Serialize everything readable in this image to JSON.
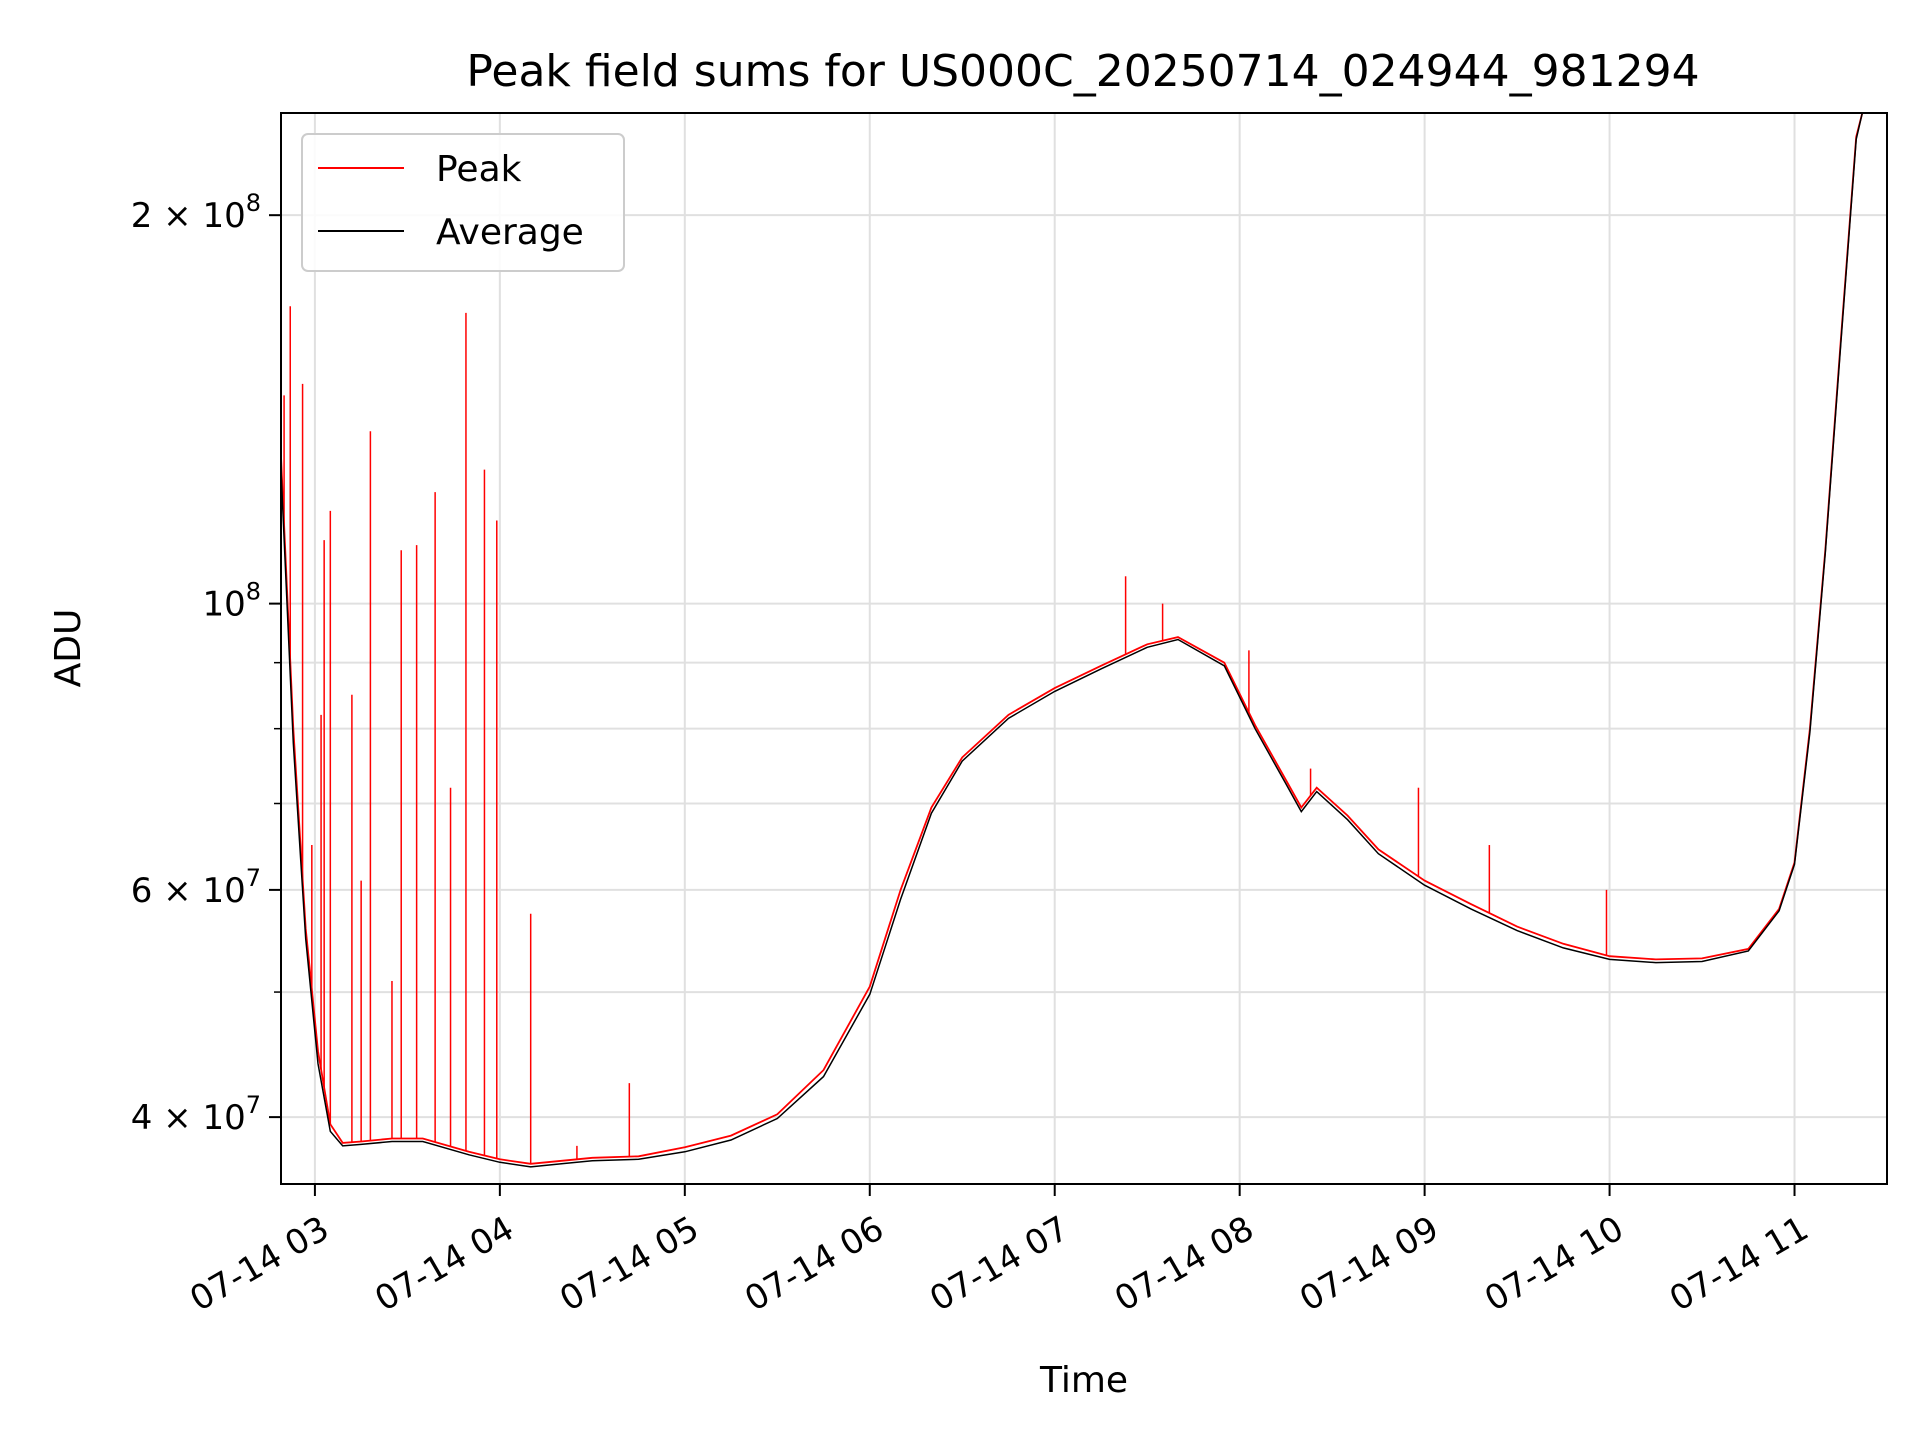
{
  "chart_data": {
    "type": "line",
    "title": "Peak field sums for US000C_20250714_024944_981294",
    "xlabel": "Time",
    "ylabel": "ADU",
    "x_scale": "time",
    "y_scale": "log",
    "xlim": [
      "2025-07-14 02:49",
      "2025-07-14 11:30"
    ],
    "ylim": [
      35500000,
      240000000
    ],
    "grid": true,
    "legend_position": "top-left",
    "x_ticks": [
      {
        "value": "2025-07-14 03:00",
        "label": "07-14 03"
      },
      {
        "value": "2025-07-14 04:00",
        "label": "07-14 04"
      },
      {
        "value": "2025-07-14 05:00",
        "label": "07-14 05"
      },
      {
        "value": "2025-07-14 06:00",
        "label": "07-14 06"
      },
      {
        "value": "2025-07-14 07:00",
        "label": "07-14 07"
      },
      {
        "value": "2025-07-14 08:00",
        "label": "07-14 08"
      },
      {
        "value": "2025-07-14 09:00",
        "label": "07-14 09"
      },
      {
        "value": "2025-07-14 10:00",
        "label": "07-14 10"
      },
      {
        "value": "2025-07-14 11:00",
        "label": "07-14 11"
      }
    ],
    "y_major_ticks": [
      {
        "value": 40000000,
        "mantissa": "4",
        "base": "10",
        "exp": "7"
      },
      {
        "value": 60000000,
        "mantissa": "6",
        "base": "10",
        "exp": "7"
      },
      {
        "value": 100000000,
        "mantissa": "",
        "base": "10",
        "exp": "8"
      },
      {
        "value": 200000000,
        "mantissa": "2",
        "base": "10",
        "exp": "8"
      }
    ],
    "y_minor_ticks": [
      50000000,
      70000000,
      80000000,
      90000000
    ],
    "series": [
      {
        "name": "Peak",
        "color": "#ff0000",
        "baseline": [
          [
            "2025-07-14 02:49",
            130000000
          ],
          [
            "2025-07-14 02:53",
            80000000
          ],
          [
            "2025-07-14 02:57",
            56000000
          ],
          [
            "2025-07-14 03:01",
            45000000
          ],
          [
            "2025-07-14 03:05",
            39500000
          ],
          [
            "2025-07-14 03:09",
            38200000
          ],
          [
            "2025-07-14 03:15",
            38300000
          ],
          [
            "2025-07-14 03:25",
            38500000
          ],
          [
            "2025-07-14 03:35",
            38500000
          ],
          [
            "2025-07-14 03:50",
            37600000
          ],
          [
            "2025-07-14 04:00",
            37100000
          ],
          [
            "2025-07-14 04:10",
            36800000
          ],
          [
            "2025-07-14 04:20",
            37000000
          ],
          [
            "2025-07-14 04:30",
            37200000
          ],
          [
            "2025-07-14 04:45",
            37300000
          ],
          [
            "2025-07-14 05:00",
            37900000
          ],
          [
            "2025-07-14 05:15",
            38700000
          ],
          [
            "2025-07-14 05:30",
            40200000
          ],
          [
            "2025-07-14 05:45",
            43500000
          ],
          [
            "2025-07-14 06:00",
            50500000
          ],
          [
            "2025-07-14 06:10",
            60000000
          ],
          [
            "2025-07-14 06:20",
            69500000
          ],
          [
            "2025-07-14 06:30",
            76000000
          ],
          [
            "2025-07-14 06:45",
            82000000
          ],
          [
            "2025-07-14 07:00",
            86000000
          ],
          [
            "2025-07-14 07:15",
            89500000
          ],
          [
            "2025-07-14 07:30",
            93000000
          ],
          [
            "2025-07-14 07:40",
            94200000
          ],
          [
            "2025-07-14 07:55",
            90000000
          ],
          [
            "2025-07-14 08:05",
            80500000
          ],
          [
            "2025-07-14 08:15",
            73000000
          ],
          [
            "2025-07-14 08:20",
            69500000
          ],
          [
            "2025-07-14 08:25",
            72000000
          ],
          [
            "2025-07-14 08:35",
            68500000
          ],
          [
            "2025-07-14 08:45",
            64500000
          ],
          [
            "2025-07-14 09:00",
            61000000
          ],
          [
            "2025-07-14 09:15",
            58500000
          ],
          [
            "2025-07-14 09:30",
            56200000
          ],
          [
            "2025-07-14 09:45",
            54500000
          ],
          [
            "2025-07-14 10:00",
            53300000
          ],
          [
            "2025-07-14 10:15",
            53000000
          ],
          [
            "2025-07-14 10:30",
            53100000
          ],
          [
            "2025-07-14 10:45",
            54000000
          ],
          [
            "2025-07-14 10:55",
            58000000
          ],
          [
            "2025-07-14 11:00",
            63000000
          ],
          [
            "2025-07-14 11:05",
            80000000
          ],
          [
            "2025-07-14 11:10",
            110000000
          ],
          [
            "2025-07-14 11:15",
            160000000
          ],
          [
            "2025-07-14 11:20",
            230000000
          ],
          [
            "2025-07-14 11:22",
            240000000
          ]
        ],
        "spikes": [
          [
            "2025-07-14 02:50",
            145000000
          ],
          [
            "2025-07-14 02:52",
            170000000
          ],
          [
            "2025-07-14 02:56",
            148000000
          ],
          [
            "2025-07-14 02:59",
            65000000
          ],
          [
            "2025-07-14 03:02",
            82000000
          ],
          [
            "2025-07-14 03:03",
            112000000
          ],
          [
            "2025-07-14 03:05",
            118000000
          ],
          [
            "2025-07-14 03:12",
            85000000
          ],
          [
            "2025-07-14 03:15",
            61000000
          ],
          [
            "2025-07-14 03:18",
            136000000
          ],
          [
            "2025-07-14 03:25",
            51000000
          ],
          [
            "2025-07-14 03:28",
            110000000
          ],
          [
            "2025-07-14 03:33",
            111000000
          ],
          [
            "2025-07-14 03:39",
            122000000
          ],
          [
            "2025-07-14 03:44",
            72000000
          ],
          [
            "2025-07-14 03:49",
            168000000
          ],
          [
            "2025-07-14 03:55",
            127000000
          ],
          [
            "2025-07-14 03:59",
            116000000
          ],
          [
            "2025-07-14 04:10",
            57500000
          ],
          [
            "2025-07-14 04:25",
            38000000
          ],
          [
            "2025-07-14 04:42",
            42500000
          ],
          [
            "2025-07-14 07:23",
            105000000
          ],
          [
            "2025-07-14 07:35",
            100000000
          ],
          [
            "2025-07-14 08:03",
            92000000
          ],
          [
            "2025-07-14 08:23",
            74500000
          ],
          [
            "2025-07-14 08:58",
            72000000
          ],
          [
            "2025-07-14 09:21",
            65000000
          ],
          [
            "2025-07-14 09:59",
            60000000
          ]
        ]
      },
      {
        "name": "Average",
        "color": "#000000",
        "baseline": [
          [
            "2025-07-14 02:49",
            127000000
          ],
          [
            "2025-07-14 02:53",
            78000000
          ],
          [
            "2025-07-14 02:57",
            55000000
          ],
          [
            "2025-07-14 03:01",
            44000000
          ],
          [
            "2025-07-14 03:05",
            39000000
          ],
          [
            "2025-07-14 03:09",
            38000000
          ],
          [
            "2025-07-14 03:15",
            38100000
          ],
          [
            "2025-07-14 03:25",
            38300000
          ],
          [
            "2025-07-14 03:35",
            38300000
          ],
          [
            "2025-07-14 03:50",
            37400000
          ],
          [
            "2025-07-14 04:00",
            36900000
          ],
          [
            "2025-07-14 04:10",
            36600000
          ],
          [
            "2025-07-14 04:20",
            36800000
          ],
          [
            "2025-07-14 04:30",
            37000000
          ],
          [
            "2025-07-14 04:45",
            37100000
          ],
          [
            "2025-07-14 05:00",
            37600000
          ],
          [
            "2025-07-14 05:15",
            38400000
          ],
          [
            "2025-07-14 05:30",
            39900000
          ],
          [
            "2025-07-14 05:45",
            43000000
          ],
          [
            "2025-07-14 06:00",
            49800000
          ],
          [
            "2025-07-14 06:10",
            59000000
          ],
          [
            "2025-07-14 06:20",
            68800000
          ],
          [
            "2025-07-14 06:30",
            75500000
          ],
          [
            "2025-07-14 06:45",
            81500000
          ],
          [
            "2025-07-14 07:00",
            85500000
          ],
          [
            "2025-07-14 07:15",
            89000000
          ],
          [
            "2025-07-14 07:30",
            92500000
          ],
          [
            "2025-07-14 07:40",
            93800000
          ],
          [
            "2025-07-14 07:55",
            89500000
          ],
          [
            "2025-07-14 08:05",
            80000000
          ],
          [
            "2025-07-14 08:15",
            72500000
          ],
          [
            "2025-07-14 08:20",
            69000000
          ],
          [
            "2025-07-14 08:25",
            71500000
          ],
          [
            "2025-07-14 08:35",
            68000000
          ],
          [
            "2025-07-14 08:45",
            64000000
          ],
          [
            "2025-07-14 09:00",
            60500000
          ],
          [
            "2025-07-14 09:15",
            58000000
          ],
          [
            "2025-07-14 09:30",
            55800000
          ],
          [
            "2025-07-14 09:45",
            54100000
          ],
          [
            "2025-07-14 10:00",
            53000000
          ],
          [
            "2025-07-14 10:15",
            52700000
          ],
          [
            "2025-07-14 10:30",
            52800000
          ],
          [
            "2025-07-14 10:45",
            53800000
          ],
          [
            "2025-07-14 10:55",
            57800000
          ],
          [
            "2025-07-14 11:00",
            62800000
          ],
          [
            "2025-07-14 11:05",
            79500000
          ],
          [
            "2025-07-14 11:10",
            109500000
          ],
          [
            "2025-07-14 11:15",
            159000000
          ],
          [
            "2025-07-14 11:20",
            229000000
          ],
          [
            "2025-07-14 11:22",
            240000000
          ]
        ]
      }
    ]
  }
}
